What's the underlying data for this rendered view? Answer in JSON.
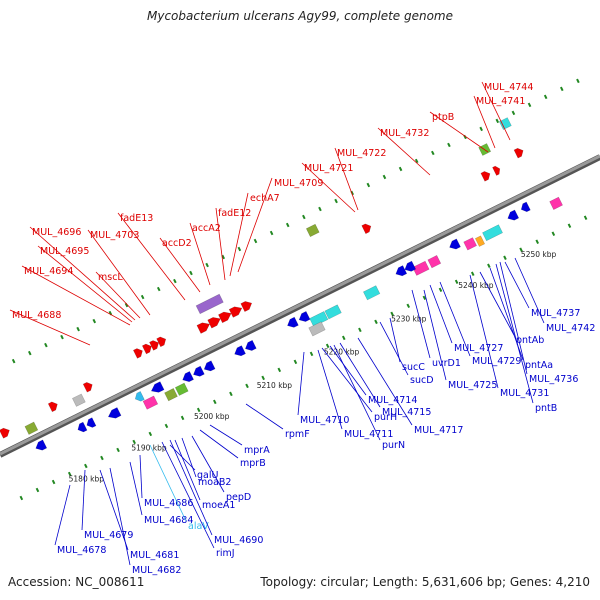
{
  "title": "Mycobacterium ulcerans Agy99, complete genome",
  "footer": {
    "accession": "Accession: NC_008611",
    "topology": "Topology: circular; Length: 5,631,606 bp; Genes: 4,210"
  },
  "colors": {
    "forward_label": "#dd0000",
    "reverse_label": "#0000cc",
    "rna_label": "#33bbee",
    "backbone": "#9a9a9a",
    "tick": "#228822"
  },
  "ticks": [
    "5180 kbp",
    "5190 kbp",
    "5200 kbp",
    "5210 kbp",
    "5220 kbp",
    "5230 kbp",
    "5240 kbp",
    "5250 kbp"
  ],
  "forward_labels": [
    "MUL_4688",
    "MUL_4694",
    "MUL_4695",
    "MUL_4696",
    "mscL",
    "MUL_4703",
    "fadE13",
    "accD2",
    "accA2",
    "fadE12",
    "echA7",
    "MUL_4709",
    "MUL_4721",
    "MUL_4722",
    "MUL_4732",
    "ptpB",
    "MUL_4741",
    "MUL_4744"
  ],
  "reverse_labels": [
    "MUL_4678",
    "MUL_4679",
    "MUL_4681",
    "MUL_4682",
    "MUL_4684",
    "MUL_4686",
    "alaV",
    "MUL_4690",
    "rimJ",
    "moeA1",
    "galU",
    "moaB2",
    "pepD",
    "mprB",
    "mprA",
    "rpmF",
    "MUL_4710",
    "MUL_4711",
    "purH",
    "MUL_4714",
    "purN",
    "MUL_4715",
    "sucD",
    "sucC",
    "MUL_4717",
    "uvrD1",
    "MUL_4725",
    "MUL_4727",
    "MUL_4729",
    "MUL_4731",
    "pntAb",
    "pntAa",
    "pntB",
    "MUL_4736",
    "MUL_4737",
    "MUL_4742"
  ]
}
